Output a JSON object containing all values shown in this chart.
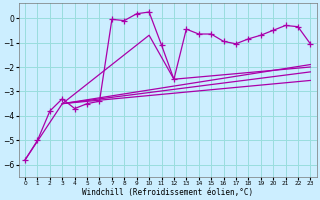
{
  "background_color": "#cceeff",
  "grid_color": "#99dddd",
  "line_color": "#aa00aa",
  "xlabel": "Windchill (Refroidissement éolien,°C)",
  "xlim": [
    -0.5,
    23.5
  ],
  "ylim": [
    -6.5,
    0.6
  ],
  "yticks": [
    0,
    -1,
    -2,
    -3,
    -4,
    -5,
    -6
  ],
  "xticks": [
    0,
    1,
    2,
    3,
    4,
    5,
    6,
    7,
    8,
    9,
    10,
    11,
    12,
    13,
    14,
    15,
    16,
    17,
    18,
    19,
    20,
    21,
    22,
    23
  ],
  "main_x": [
    0,
    1,
    2,
    3,
    4,
    5,
    6,
    7,
    8,
    9,
    10,
    11,
    12,
    13,
    14,
    15,
    16,
    17,
    18,
    19,
    20,
    21,
    22,
    23
  ],
  "main_y": [
    -5.8,
    -5.0,
    -3.8,
    -3.3,
    -3.7,
    -3.5,
    -3.4,
    -0.05,
    -0.1,
    0.18,
    0.25,
    -1.1,
    -2.5,
    -0.45,
    -0.65,
    -0.65,
    -0.95,
    -1.05,
    -0.85,
    -0.7,
    -0.5,
    -0.3,
    -0.35,
    -1.05
  ],
  "line1_x": [
    3,
    10,
    12,
    23
  ],
  "line1_y": [
    -3.5,
    -0.7,
    -2.5,
    -2.0
  ],
  "line2_x": [
    3,
    23
  ],
  "line2_y": [
    -3.5,
    -2.2
  ],
  "line3_x": [
    3,
    23
  ],
  "line3_y": [
    -3.5,
    -2.55
  ],
  "line4_x": [
    0,
    3,
    23
  ],
  "line4_y": [
    -5.8,
    -3.5,
    -1.9
  ]
}
